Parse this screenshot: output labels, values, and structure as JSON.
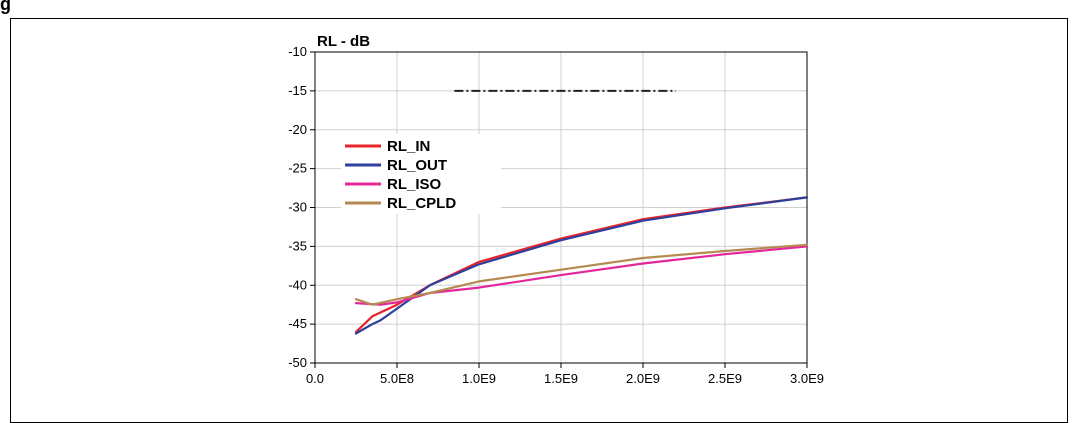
{
  "figure": {
    "label": "g"
  },
  "chart_data": {
    "type": "line",
    "title": "RL - dB",
    "xlabel": "",
    "ylabel": "",
    "xlim": [
      0,
      3000000000
    ],
    "ylim": [
      -50,
      -10
    ],
    "x_ticks": [
      "0.0",
      "5.0E8",
      "1.0E9",
      "1.5E9",
      "2.0E9",
      "2.5E9",
      "3.0E9"
    ],
    "y_ticks": [
      "-10",
      "-15",
      "-20",
      "-25",
      "-30",
      "-35",
      "-40",
      "-45",
      "-50"
    ],
    "grid": true,
    "legend_position": "left",
    "spec_line": {
      "x": [
        850000000,
        2200000000
      ],
      "y": [
        -15,
        -15
      ]
    },
    "series": [
      {
        "name": "RL_IN",
        "color": "#e8232a",
        "x": [
          250000000,
          350000000,
          500000000,
          700000000,
          1000000000,
          1500000000,
          2000000000,
          2500000000,
          3000000000
        ],
        "y": [
          -46,
          -44,
          -42.5,
          -40,
          -37,
          -34,
          -31.5,
          -30,
          -28.7
        ]
      },
      {
        "name": "RL_OUT",
        "color": "#2e3f9c",
        "x": [
          250000000,
          350000000,
          400000000,
          500000000,
          700000000,
          1000000000,
          1500000000,
          2000000000,
          2500000000,
          3000000000
        ],
        "y": [
          -46.2,
          -45,
          -44.5,
          -43,
          -40,
          -37.3,
          -34.2,
          -31.7,
          -30.1,
          -28.7
        ]
      },
      {
        "name": "RL_ISO",
        "color": "#e4269a",
        "x": [
          250000000,
          400000000,
          500000000,
          700000000,
          1000000000,
          1500000000,
          2000000000,
          2500000000,
          3000000000
        ],
        "y": [
          -42.3,
          -42.5,
          -42.2,
          -41,
          -40.3,
          -38.7,
          -37.2,
          -36,
          -35
        ]
      },
      {
        "name": "RL_CPLD",
        "color": "#b58a52",
        "x": [
          250000000,
          350000000,
          500000000,
          700000000,
          1000000000,
          1500000000,
          2000000000,
          2500000000,
          3000000000
        ],
        "y": [
          -41.8,
          -42.5,
          -41.8,
          -41,
          -39.5,
          -38,
          -36.5,
          -35.6,
          -34.8
        ]
      }
    ]
  }
}
